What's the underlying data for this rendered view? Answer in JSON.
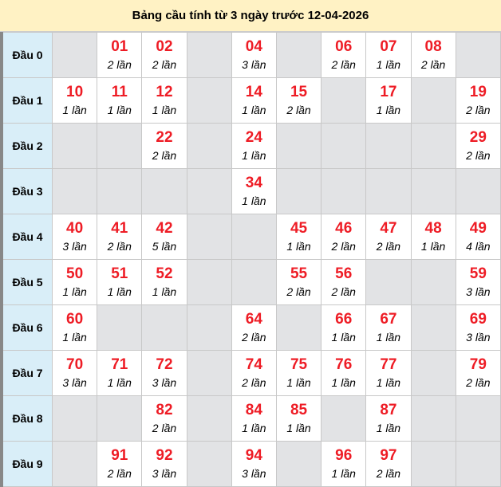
{
  "title": "Bảng cầu tính từ 3 ngày trước 12-04-2026",
  "colors": {
    "header_bg": "#fff2c4",
    "row_head_bg": "#d9eef8",
    "empty_bg": "#e2e3e5",
    "number": "#ee1c25"
  },
  "rows": [
    {
      "label": "Đầu 0",
      "cells": [
        null,
        {
          "num": "01",
          "count": "2 lần"
        },
        {
          "num": "02",
          "count": "2 lần"
        },
        null,
        {
          "num": "04",
          "count": "3 lần"
        },
        null,
        {
          "num": "06",
          "count": "2 lần"
        },
        {
          "num": "07",
          "count": "1 lần"
        },
        {
          "num": "08",
          "count": "2 lần"
        },
        null
      ]
    },
    {
      "label": "Đầu 1",
      "cells": [
        {
          "num": "10",
          "count": "1 lần"
        },
        {
          "num": "11",
          "count": "1 lần"
        },
        {
          "num": "12",
          "count": "1 lần"
        },
        null,
        {
          "num": "14",
          "count": "1 lần"
        },
        {
          "num": "15",
          "count": "2 lần"
        },
        null,
        {
          "num": "17",
          "count": "1 lần"
        },
        null,
        {
          "num": "19",
          "count": "2 lần"
        }
      ]
    },
    {
      "label": "Đầu 2",
      "cells": [
        null,
        null,
        {
          "num": "22",
          "count": "2 lần"
        },
        null,
        {
          "num": "24",
          "count": "1 lần"
        },
        null,
        null,
        null,
        null,
        {
          "num": "29",
          "count": "2 lần"
        }
      ]
    },
    {
      "label": "Đầu 3",
      "cells": [
        null,
        null,
        null,
        null,
        {
          "num": "34",
          "count": "1 lần"
        },
        null,
        null,
        null,
        null,
        null
      ]
    },
    {
      "label": "Đầu 4",
      "cells": [
        {
          "num": "40",
          "count": "3 lần"
        },
        {
          "num": "41",
          "count": "2 lần"
        },
        {
          "num": "42",
          "count": "5 lần"
        },
        null,
        null,
        {
          "num": "45",
          "count": "1 lần"
        },
        {
          "num": "46",
          "count": "2 lần"
        },
        {
          "num": "47",
          "count": "2 lần"
        },
        {
          "num": "48",
          "count": "1 lần"
        },
        {
          "num": "49",
          "count": "4 lần"
        }
      ]
    },
    {
      "label": "Đầu 5",
      "cells": [
        {
          "num": "50",
          "count": "1 lần"
        },
        {
          "num": "51",
          "count": "1 lần"
        },
        {
          "num": "52",
          "count": "1 lần"
        },
        null,
        null,
        {
          "num": "55",
          "count": "2 lần"
        },
        {
          "num": "56",
          "count": "2 lần"
        },
        null,
        null,
        {
          "num": "59",
          "count": "3 lần"
        }
      ]
    },
    {
      "label": "Đầu 6",
      "cells": [
        {
          "num": "60",
          "count": "1 lần"
        },
        null,
        null,
        null,
        {
          "num": "64",
          "count": "2 lần"
        },
        null,
        {
          "num": "66",
          "count": "1 lần"
        },
        {
          "num": "67",
          "count": "1 lần"
        },
        null,
        {
          "num": "69",
          "count": "3 lần"
        }
      ]
    },
    {
      "label": "Đầu 7",
      "cells": [
        {
          "num": "70",
          "count": "3 lần"
        },
        {
          "num": "71",
          "count": "1 lần"
        },
        {
          "num": "72",
          "count": "3 lần"
        },
        null,
        {
          "num": "74",
          "count": "2 lần"
        },
        {
          "num": "75",
          "count": "1 lần"
        },
        {
          "num": "76",
          "count": "1 lần"
        },
        {
          "num": "77",
          "count": "1 lần"
        },
        null,
        {
          "num": "79",
          "count": "2 lần"
        }
      ]
    },
    {
      "label": "Đầu 8",
      "cells": [
        null,
        null,
        {
          "num": "82",
          "count": "2 lần"
        },
        null,
        {
          "num": "84",
          "count": "1 lần"
        },
        {
          "num": "85",
          "count": "1 lần"
        },
        null,
        {
          "num": "87",
          "count": "1 lần"
        },
        null,
        null
      ]
    },
    {
      "label": "Đầu 9",
      "cells": [
        null,
        {
          "num": "91",
          "count": "2 lần"
        },
        {
          "num": "92",
          "count": "3 lần"
        },
        null,
        {
          "num": "94",
          "count": "3 lần"
        },
        null,
        {
          "num": "96",
          "count": "1 lần"
        },
        {
          "num": "97",
          "count": "2 lần"
        },
        null,
        null
      ]
    }
  ]
}
